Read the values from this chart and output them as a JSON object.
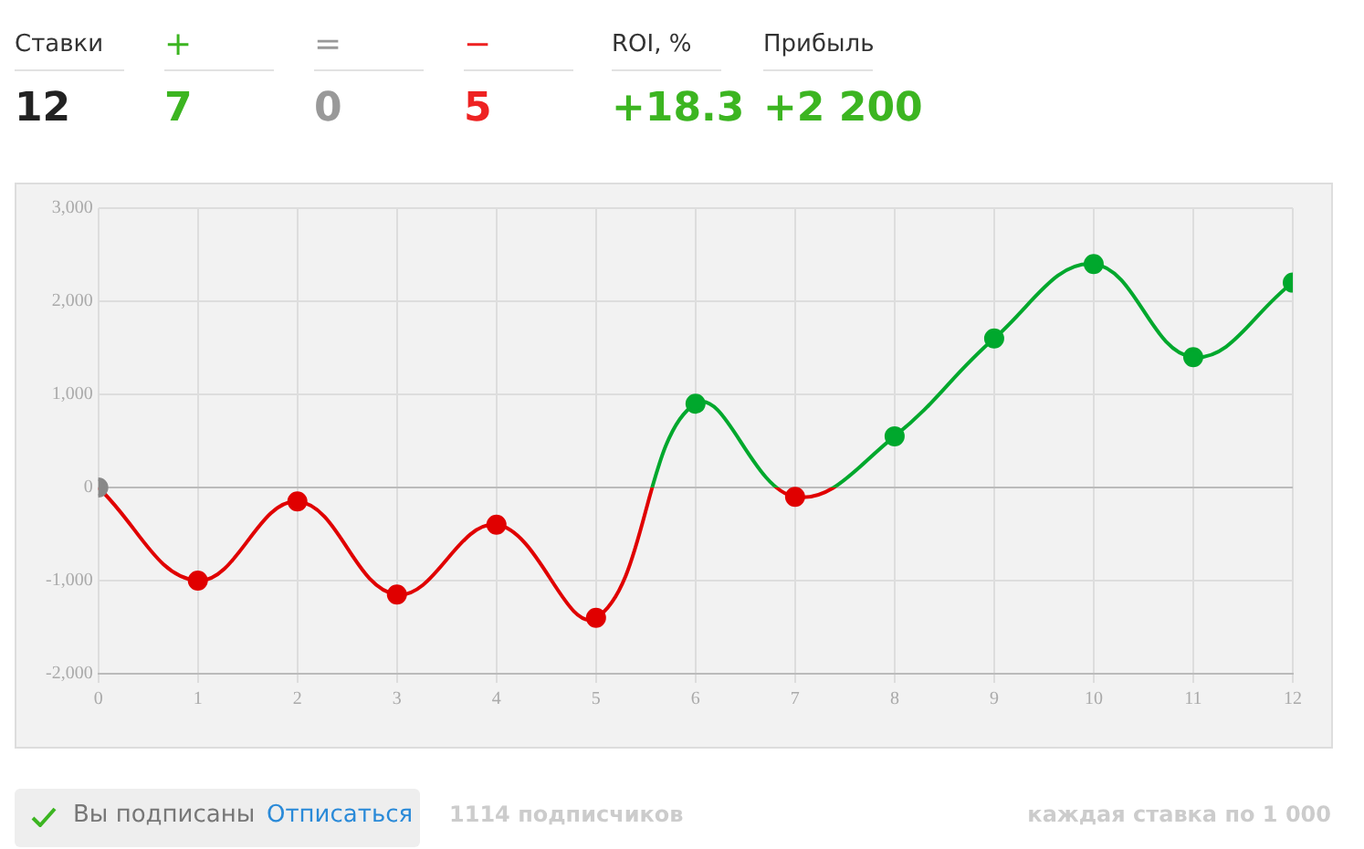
{
  "chart_data": [
    {
      "type": "other",
      "annotations": [
        "Ставки",
        "12",
        "+",
        "7",
        "=",
        "0",
        "−",
        "5",
        "ROI, %",
        "+18.3",
        "Прибыль",
        "+2 200"
      ]
    },
    {
      "type": "line",
      "x": [
        0,
        1,
        2,
        3,
        4,
        5,
        6,
        7,
        8,
        9,
        10,
        11,
        12
      ],
      "series": [
        {
          "color": "#00a82d",
          "colors": [
            "#888888",
            "#e00000",
            "#e00000",
            "#e00000",
            "#e00000",
            "#e00000",
            "#00a82d",
            "#e00000",
            "#00a82d",
            "#00a82d",
            "#00a82d",
            "#00a82d",
            "#00a82d"
          ],
          "values": [
            0,
            -1000,
            -150,
            -1150,
            -400,
            -1400,
            900,
            -100,
            550,
            1600,
            2400,
            1400,
            2200
          ]
        }
      ],
      "xlim": [
        0,
        12
      ],
      "xticks": [
        0,
        1,
        2,
        3,
        4,
        5,
        6,
        7,
        8,
        9,
        10,
        11,
        12
      ],
      "ylim": [
        -2000,
        3000
      ],
      "yticks": [
        {
          "value": -2000,
          "label": "-2,000"
        },
        {
          "value": -1000,
          "label": "-1,000"
        },
        {
          "value": 0,
          "label": "0"
        },
        {
          "value": 1000,
          "label": "1,000"
        },
        {
          "value": 2000,
          "label": "2,000"
        },
        {
          "value": 3000,
          "label": "3,000"
        }
      ],
      "ref_lines": [
        {
          "axis": "y",
          "value": 0,
          "color": "#bbbbbb"
        }
      ],
      "grid": true,
      "legend": false,
      "marker": "circle",
      "line_style": "solid",
      "annotations": [
        "Вы подписаны",
        "Отписаться",
        "1114 подписчиков",
        "каждая ставка по 1 000"
      ]
    }
  ]
}
